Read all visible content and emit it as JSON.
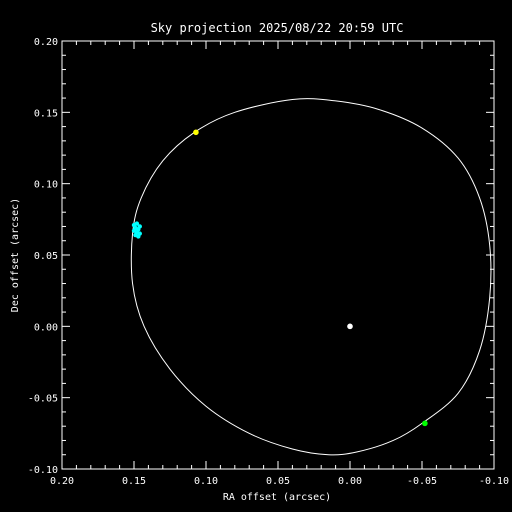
{
  "chart_data": {
    "type": "scatter",
    "title": "Sky projection 2025/08/22 20:59 UTC",
    "xlabel": "RA offset (arcsec)",
    "ylabel": "Dec offset (arcsec)",
    "xlim": [
      0.2,
      -0.1
    ],
    "ylim": [
      -0.1,
      0.2
    ],
    "x_ticks": [
      0.2,
      0.15,
      0.1,
      0.05,
      0.0,
      -0.05,
      -0.1
    ],
    "x_tick_labels": [
      "0.20",
      "0.15",
      "0.10",
      "0.05",
      "0.00",
      "-0.05",
      "-0.10"
    ],
    "y_ticks": [
      0.2,
      0.15,
      0.1,
      0.05,
      0.0,
      -0.05,
      -0.1
    ],
    "y_tick_labels": [
      "0.20",
      "0.15",
      "0.10",
      "0.05",
      "0.00",
      "-0.05",
      "-0.10"
    ],
    "background": "#000000",
    "foreground": "#ffffff",
    "orbit": {
      "color": "#ffffff",
      "points": [
        [
          0.04,
          0.159
        ],
        [
          0.01,
          0.158
        ],
        [
          -0.02,
          0.152
        ],
        [
          -0.05,
          0.139
        ],
        [
          -0.075,
          0.118
        ],
        [
          -0.09,
          0.09
        ],
        [
          -0.097,
          0.057
        ],
        [
          -0.097,
          0.02
        ],
        [
          -0.09,
          -0.017
        ],
        [
          -0.075,
          -0.047
        ],
        [
          -0.05,
          -0.068
        ],
        [
          -0.03,
          -0.08
        ],
        [
          -0.005,
          -0.088
        ],
        [
          0.015,
          -0.09
        ],
        [
          0.04,
          -0.086
        ],
        [
          0.07,
          -0.075
        ],
        [
          0.1,
          -0.056
        ],
        [
          0.125,
          -0.03
        ],
        [
          0.143,
          0.0
        ],
        [
          0.151,
          0.03
        ],
        [
          0.151,
          0.065
        ],
        [
          0.145,
          0.09
        ],
        [
          0.13,
          0.116
        ],
        [
          0.108,
          0.136
        ],
        [
          0.08,
          0.15
        ],
        [
          0.04,
          0.159
        ]
      ]
    },
    "markers": [
      {
        "x": 0.0,
        "y": 0.0,
        "color": "#ffffff"
      },
      {
        "x": 0.107,
        "y": 0.136,
        "color": "#ffff00"
      },
      {
        "x": -0.052,
        "y": -0.068,
        "color": "#00ff00"
      }
    ],
    "cyan_cluster": {
      "color": "#00ffff",
      "points": [
        [
          0.148,
          0.072
        ],
        [
          0.15,
          0.071
        ],
        [
          0.146,
          0.07
        ],
        [
          0.149,
          0.069
        ],
        [
          0.147,
          0.068
        ],
        [
          0.15,
          0.067
        ],
        [
          0.148,
          0.066
        ],
        [
          0.146,
          0.065
        ],
        [
          0.149,
          0.064
        ],
        [
          0.147,
          0.063
        ]
      ]
    }
  }
}
